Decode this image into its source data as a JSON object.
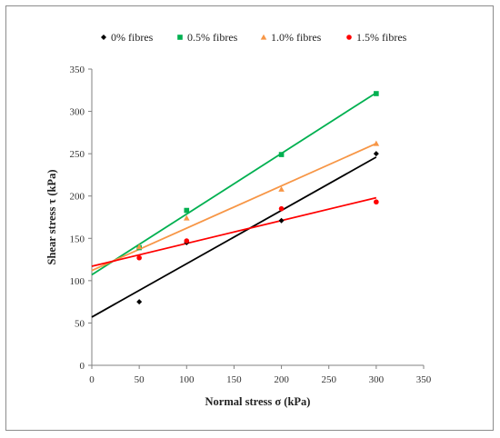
{
  "chart_data": {
    "type": "scatter",
    "title": "",
    "xlabel": "Normal stress σ (kPa)",
    "ylabel": "Shear stress τ (kPa)",
    "xlim": [
      0,
      350
    ],
    "ylim": [
      0,
      350
    ],
    "xticks": [
      0,
      50,
      100,
      150,
      200,
      250,
      300,
      350
    ],
    "yticks": [
      0,
      50,
      100,
      150,
      200,
      250,
      300,
      350
    ],
    "grid": false,
    "legend": "top",
    "series": [
      {
        "name": "0% fibres",
        "marker": "diamond",
        "color": "#000000",
        "points": [
          [
            50,
            75
          ],
          [
            100,
            145
          ],
          [
            200,
            171
          ],
          [
            300,
            250
          ]
        ],
        "trendline": [
          [
            0,
            57
          ],
          [
            300,
            246
          ]
        ]
      },
      {
        "name": "0.5% fibres",
        "marker": "square",
        "color": "#00b050",
        "points": [
          [
            50,
            139
          ],
          [
            100,
            183
          ],
          [
            200,
            249
          ],
          [
            300,
            321
          ]
        ],
        "trendline": [
          [
            0,
            107
          ],
          [
            300,
            322
          ]
        ]
      },
      {
        "name": "1.0% fibres",
        "marker": "triangle",
        "color": "#f79646",
        "points": [
          [
            50,
            140
          ],
          [
            100,
            174
          ],
          [
            200,
            208
          ],
          [
            300,
            262
          ]
        ],
        "trendline": [
          [
            0,
            112
          ],
          [
            300,
            262
          ]
        ]
      },
      {
        "name": "1.5% fibres",
        "marker": "circle",
        "color": "#ff0000",
        "points": [
          [
            50,
            127
          ],
          [
            100,
            147
          ],
          [
            200,
            185
          ],
          [
            300,
            193
          ]
        ],
        "trendline": [
          [
            0,
            117
          ],
          [
            300,
            198
          ]
        ]
      }
    ]
  }
}
